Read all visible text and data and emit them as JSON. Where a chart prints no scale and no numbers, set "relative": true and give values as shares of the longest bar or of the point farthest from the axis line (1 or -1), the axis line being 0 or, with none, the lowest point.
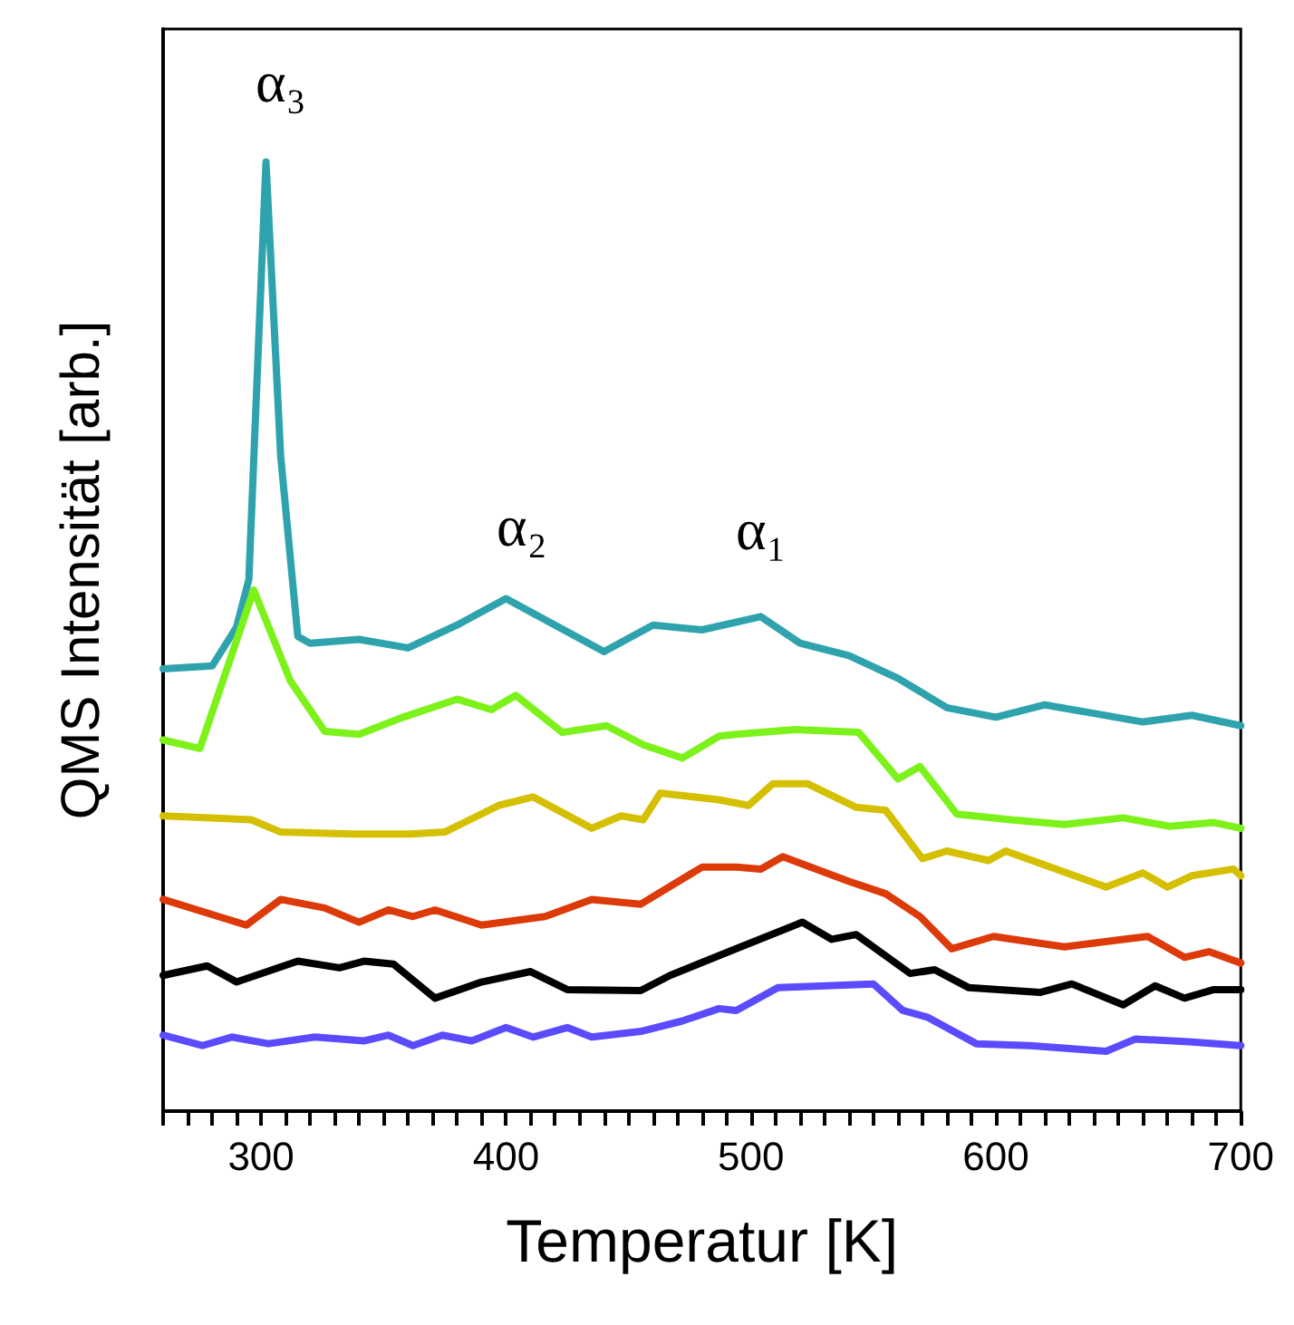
{
  "chart_data": {
    "type": "line",
    "relative": true,
    "xlabel": "Temperatur [K]",
    "ylabel": "QMS Intensität [arb.]",
    "xlim": [
      260,
      700
    ],
    "xticks": [
      {
        "value": 260,
        "label": null
      },
      {
        "value": 270,
        "label": null
      },
      {
        "value": 280,
        "label": null
      },
      {
        "value": 290,
        "label": null
      },
      300,
      {
        "value": 310,
        "label": null
      },
      {
        "value": 320,
        "label": null
      },
      {
        "value": 330,
        "label": null
      },
      {
        "value": 340,
        "label": null
      },
      {
        "value": 350,
        "label": null
      },
      {
        "value": 360,
        "label": null
      },
      {
        "value": 370,
        "label": null
      },
      {
        "value": 380,
        "label": null
      },
      {
        "value": 390,
        "label": null
      },
      400,
      {
        "value": 410,
        "label": null
      },
      {
        "value": 420,
        "label": null
      },
      {
        "value": 430,
        "label": null
      },
      {
        "value": 440,
        "label": null
      },
      {
        "value": 450,
        "label": null
      },
      {
        "value": 460,
        "label": null
      },
      {
        "value": 470,
        "label": null
      },
      {
        "value": 480,
        "label": null
      },
      {
        "value": 490,
        "label": null
      },
      500,
      {
        "value": 510,
        "label": null
      },
      {
        "value": 520,
        "label": null
      },
      {
        "value": 530,
        "label": null
      },
      {
        "value": 540,
        "label": null
      },
      {
        "value": 550,
        "label": null
      },
      {
        "value": 560,
        "label": null
      },
      {
        "value": 570,
        "label": null
      },
      {
        "value": 580,
        "label": null
      },
      {
        "value": 590,
        "label": null
      },
      600,
      {
        "value": 610,
        "label": null
      },
      {
        "value": 620,
        "label": null
      },
      {
        "value": 630,
        "label": null
      },
      {
        "value": 640,
        "label": null
      },
      {
        "value": 650,
        "label": null
      },
      {
        "value": 660,
        "label": null
      },
      {
        "value": 670,
        "label": null
      },
      {
        "value": 680,
        "label": null
      },
      {
        "value": 690,
        "label": null
      },
      700
    ],
    "grid": false,
    "marker": "none",
    "line_style": "solid",
    "series": [
      {
        "color": "#2fa3ad",
        "x": [
          260,
          280,
          290,
          295,
          302,
          308,
          315,
          320,
          340,
          360,
          380,
          400,
          420,
          440,
          460,
          480,
          504,
          520,
          540,
          560,
          580,
          600,
          620,
          640,
          660,
          680,
          700
        ],
        "values": [
          0.466,
          0.469,
          0.51,
          0.56,
          1.0,
          0.69,
          0.5,
          0.493,
          0.497,
          0.488,
          0.512,
          0.54,
          0.512,
          0.484,
          0.512,
          0.507,
          0.521,
          0.493,
          0.48,
          0.456,
          0.425,
          0.415,
          0.428,
          0.419,
          0.41,
          0.417,
          0.406
        ]
      },
      {
        "color": "#7cf21a",
        "x": [
          260,
          275,
          297,
          312,
          326,
          340,
          358,
          380,
          394,
          404,
          423,
          441,
          456,
          472,
          487,
          494,
          518,
          544,
          560,
          569,
          584,
          606,
          628,
          652,
          671,
          689,
          700
        ],
        "values": [
          0.391,
          0.382,
          0.549,
          0.453,
          0.4,
          0.397,
          0.415,
          0.434,
          0.423,
          0.438,
          0.399,
          0.406,
          0.386,
          0.372,
          0.395,
          0.397,
          0.402,
          0.399,
          0.35,
          0.363,
          0.313,
          0.307,
          0.302,
          0.309,
          0.3,
          0.304,
          0.298
        ]
      },
      {
        "color": "#d4c000",
        "x": [
          260,
          296,
          308,
          337,
          361,
          375,
          397,
          411,
          435,
          447,
          456,
          463,
          487,
          499,
          509,
          523,
          543,
          555,
          570,
          580,
          597,
          604,
          645,
          660,
          670,
          680,
          697,
          700
        ],
        "values": [
          0.311,
          0.307,
          0.294,
          0.292,
          0.292,
          0.294,
          0.322,
          0.331,
          0.298,
          0.311,
          0.307,
          0.335,
          0.328,
          0.322,
          0.345,
          0.345,
          0.32,
          0.317,
          0.266,
          0.274,
          0.264,
          0.274,
          0.236,
          0.251,
          0.236,
          0.248,
          0.255,
          0.248
        ]
      },
      {
        "color": "#dd3a0a",
        "x": [
          260,
          294,
          308,
          326,
          340,
          352,
          362,
          371,
          390,
          416,
          435,
          455,
          480,
          494,
          504,
          513,
          540,
          555,
          569,
          582,
          599,
          628,
          652,
          662,
          677,
          687,
          700
        ],
        "values": [
          0.223,
          0.196,
          0.223,
          0.214,
          0.199,
          0.212,
          0.205,
          0.212,
          0.196,
          0.205,
          0.223,
          0.218,
          0.257,
          0.257,
          0.255,
          0.268,
          0.242,
          0.229,
          0.205,
          0.171,
          0.184,
          0.173,
          0.181,
          0.184,
          0.162,
          0.168,
          0.156
        ]
      },
      {
        "color": "#000000",
        "x": [
          260,
          278,
          290,
          315,
          332,
          342,
          354,
          371,
          390,
          410,
          425,
          455,
          467,
          491,
          521,
          533,
          543,
          565,
          575,
          589,
          618,
          631,
          652,
          665,
          677,
          689,
          700
        ],
        "values": [
          0.143,
          0.153,
          0.136,
          0.158,
          0.151,
          0.158,
          0.155,
          0.119,
          0.136,
          0.147,
          0.128,
          0.127,
          0.143,
          0.168,
          0.199,
          0.181,
          0.186,
          0.145,
          0.149,
          0.13,
          0.125,
          0.134,
          0.112,
          0.132,
          0.119,
          0.128,
          0.128
        ]
      },
      {
        "color": "#5a4bff",
        "x": [
          260,
          276,
          288,
          303,
          322,
          342,
          352,
          362,
          374,
          386,
          400,
          411,
          425,
          435,
          455,
          472,
          487,
          494,
          511,
          550,
          562,
          572,
          592,
          614,
          645,
          657,
          679,
          700
        ],
        "values": [
          0.08,
          0.069,
          0.078,
          0.071,
          0.078,
          0.074,
          0.08,
          0.069,
          0.08,
          0.074,
          0.088,
          0.078,
          0.088,
          0.078,
          0.084,
          0.095,
          0.108,
          0.106,
          0.13,
          0.134,
          0.106,
          0.099,
          0.071,
          0.069,
          0.063,
          0.076,
          0.073,
          0.069
        ]
      }
    ],
    "annotations": [
      "α₃",
      "α₂",
      "α₁"
    ]
  }
}
